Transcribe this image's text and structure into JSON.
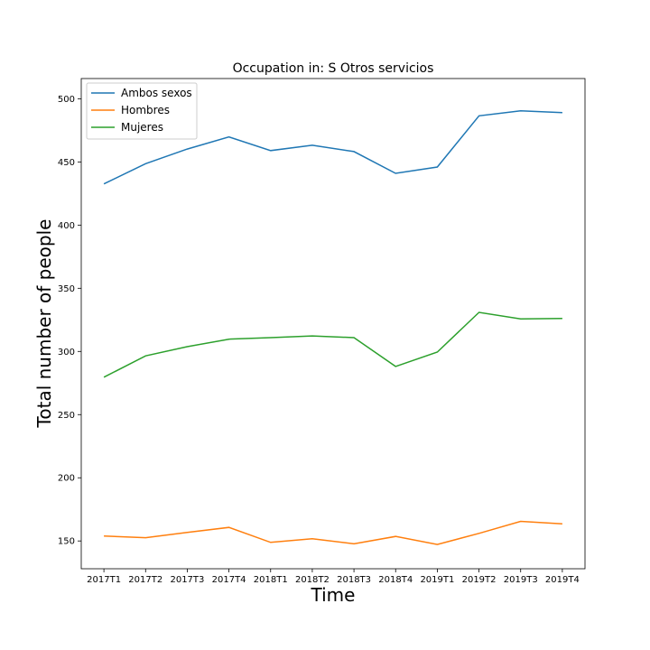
{
  "chart_data": {
    "type": "line",
    "title": "Occupation in: S Otros servicios",
    "xlabel": "Time",
    "ylabel": "Total number of people",
    "categories": [
      "2017T1",
      "2017T2",
      "2017T3",
      "2017T4",
      "2018T1",
      "2018T2",
      "2018T3",
      "2018T4",
      "2019T1",
      "2019T2",
      "2019T3",
      "2019T4"
    ],
    "yticks": [
      150,
      200,
      250,
      300,
      350,
      400,
      450,
      500
    ],
    "ylim": [
      128,
      516
    ],
    "grid": false,
    "legend_position": "top-left",
    "series": [
      {
        "name": "Ambos sexos",
        "color": "#1f77b4",
        "values": [
          432.6,
          448.6,
          460.2,
          469.8,
          459.0,
          463.2,
          458.2,
          441.0,
          446.0,
          486.5,
          490.5,
          489.0
        ]
      },
      {
        "name": "Hombres",
        "color": "#ff7f0e",
        "values": [
          153.9,
          152.6,
          156.7,
          160.7,
          148.9,
          151.8,
          147.7,
          153.6,
          147.2,
          156.0,
          165.5,
          163.5
        ]
      },
      {
        "name": "Mujeres",
        "color": "#2ca02c",
        "values": [
          279.6,
          296.5,
          303.8,
          309.7,
          310.9,
          312.3,
          310.9,
          288.1,
          299.5,
          330.9,
          325.7,
          326.1
        ]
      }
    ]
  }
}
